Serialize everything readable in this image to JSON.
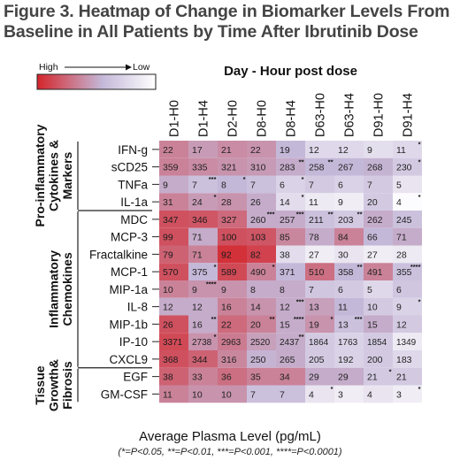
{
  "title_line1": "Figure 3. Heatmap of Change in Biomarker Levels From",
  "title_line2": "Baseline in All Patients by Time After Ibrutinib Dose",
  "footer_main": "Average Plasma Level (pg/mL)",
  "footer_sig": "(*=P<0.05, **=P<0.01, ***=P<0.001, ****=P<0.0001)",
  "colors": {
    "high": "#d4252b",
    "mid": "#c4b8d8",
    "low": "#ffffff",
    "border": "#333333"
  },
  "chart_data": {
    "type": "heatmap",
    "title": "Day - Hour post dose",
    "legend": {
      "high_label": "High",
      "low_label": "Low",
      "placement": "top-left"
    },
    "columns": [
      "D1-H0",
      "D1-H4",
      "D2-H0",
      "D8-H0",
      "D8-H4",
      "D63-H0",
      "D63-H4",
      "D91-H0",
      "D91-H4"
    ],
    "groups": [
      {
        "label_lines": [
          "Pro-inflammatory",
          "Cytokines &",
          "Markers"
        ],
        "start": 0,
        "end": 3
      },
      {
        "label_lines": [
          "Inflammatory",
          "Chemokines"
        ],
        "start": 4,
        "end": 12
      },
      {
        "label_lines": [
          "Tissue",
          "Growth&",
          "Fibrosis"
        ],
        "start": 13,
        "end": 14
      }
    ],
    "rows": [
      {
        "label": "IFN-g",
        "values": [
          "22",
          "17",
          "21",
          "22",
          "19",
          "12",
          "12",
          "9",
          "11"
        ],
        "sig": [
          "",
          "",
          "",
          "",
          "",
          "",
          "",
          "",
          "*"
        ]
      },
      {
        "label": "sCD25",
        "values": [
          "359",
          "335",
          "321",
          "310",
          "283",
          "258",
          "267",
          "268",
          "230"
        ],
        "sig": [
          "",
          "",
          "",
          "",
          "**",
          "**",
          "",
          "",
          "*"
        ]
      },
      {
        "label": "TNFa",
        "values": [
          "9",
          "7",
          "8",
          "7",
          "6",
          "7",
          "6",
          "7",
          "5"
        ],
        "sig": [
          "",
          "***",
          "*",
          "",
          "*",
          "",
          "",
          "",
          ""
        ]
      },
      {
        "label": "IL-1a",
        "values": [
          "31",
          "24",
          "28",
          "26",
          "14",
          "11",
          "9",
          "20",
          "4"
        ],
        "sig": [
          "",
          "*",
          "",
          "",
          "*",
          "",
          "",
          "",
          "*"
        ]
      },
      {
        "label": "MDC",
        "values": [
          "347",
          "346",
          "327",
          "260",
          "257",
          "211",
          "203",
          "262",
          "245"
        ],
        "sig": [
          "",
          "",
          "",
          "***",
          "***",
          "**",
          "**",
          "",
          ""
        ]
      },
      {
        "label": "MCP-3",
        "values": [
          "99",
          "71",
          "100",
          "103",
          "85",
          "78",
          "84",
          "66",
          "71"
        ],
        "sig": [
          "",
          "",
          "",
          "",
          "",
          "",
          "",
          "",
          ""
        ]
      },
      {
        "label": "Fractalkine",
        "values": [
          "79",
          "71",
          "92",
          "82",
          "38",
          "27",
          "30",
          "27",
          "28"
        ],
        "sig": [
          "",
          "",
          "",
          "",
          "",
          "",
          "",
          "",
          ""
        ]
      },
      {
        "label": "MCP-1",
        "values": [
          "570",
          "375",
          "589",
          "490",
          "371",
          "510",
          "358",
          "491",
          "355"
        ],
        "sig": [
          "",
          "*",
          "",
          "*",
          "",
          "",
          "**",
          "",
          "****"
        ]
      },
      {
        "label": "MIP-1a",
        "values": [
          "10",
          "9",
          "9",
          "8",
          "8",
          "7",
          "6",
          "5",
          "6"
        ],
        "sig": [
          "",
          "****",
          "",
          "",
          "",
          "",
          "",
          "",
          ""
        ]
      },
      {
        "label": "IL-8",
        "values": [
          "12",
          "12",
          "16",
          "14",
          "12",
          "13",
          "11",
          "10",
          "9"
        ],
        "sig": [
          "",
          "",
          "",
          "",
          "***",
          "",
          "",
          "",
          "*"
        ]
      },
      {
        "label": "MIP-1b",
        "values": [
          "26",
          "16",
          "22",
          "20",
          "15",
          "19",
          "13",
          "15",
          "12"
        ],
        "sig": [
          "",
          "**",
          "",
          "**",
          "****",
          "*",
          "***",
          "",
          ""
        ]
      },
      {
        "label": "IP-10",
        "values": [
          "3371",
          "2738",
          "2963",
          "2520",
          "2437",
          "1864",
          "1763",
          "1854",
          "1349"
        ],
        "sig": [
          "",
          "*",
          "",
          "",
          "**",
          "",
          "",
          "",
          ""
        ]
      },
      {
        "label": "CXCL9",
        "values": [
          "368",
          "344",
          "316",
          "250",
          "265",
          "205",
          "192",
          "200",
          "183"
        ],
        "sig": [
          "",
          "",
          "",
          "",
          "",
          "",
          "",
          "",
          ""
        ]
      },
      {
        "label": "EGF",
        "values": [
          "38",
          "33",
          "36",
          "35",
          "34",
          "29",
          "29",
          "21",
          "21"
        ],
        "sig": [
          "",
          "",
          "",
          "",
          "",
          "",
          "",
          "*",
          ""
        ]
      },
      {
        "label": "GM-CSF",
        "values": [
          "11",
          "10",
          "10",
          "7",
          "7",
          "4",
          "3",
          "4",
          "3"
        ],
        "sig": [
          "",
          "",
          "",
          "",
          "",
          "*",
          "",
          "",
          "*"
        ]
      }
    ],
    "intensity": [
      [
        0.62,
        0.52,
        0.58,
        0.55,
        0.4,
        0.22,
        0.22,
        0.18,
        0.22
      ],
      [
        0.62,
        0.58,
        0.55,
        0.52,
        0.45,
        0.4,
        0.4,
        0.42,
        0.3
      ],
      [
        0.45,
        0.35,
        0.4,
        0.35,
        0.25,
        0.3,
        0.25,
        0.3,
        0.15
      ],
      [
        0.62,
        0.52,
        0.55,
        0.45,
        0.2,
        0.12,
        0.1,
        0.3,
        0.02
      ],
      [
        0.82,
        0.8,
        0.72,
        0.45,
        0.45,
        0.35,
        0.3,
        0.45,
        0.35
      ],
      [
        0.82,
        0.45,
        0.82,
        0.8,
        0.6,
        0.45,
        0.62,
        0.4,
        0.45
      ],
      [
        0.75,
        0.62,
        0.95,
        0.88,
        0.2,
        0.1,
        0.15,
        0.1,
        0.12
      ],
      [
        0.82,
        0.4,
        0.85,
        0.62,
        0.4,
        0.7,
        0.4,
        0.62,
        0.35
      ],
      [
        0.62,
        0.55,
        0.55,
        0.45,
        0.45,
        0.32,
        0.3,
        0.22,
        0.32
      ],
      [
        0.45,
        0.45,
        0.62,
        0.55,
        0.45,
        0.5,
        0.4,
        0.3,
        0.25
      ],
      [
        0.82,
        0.45,
        0.72,
        0.62,
        0.45,
        0.55,
        0.35,
        0.45,
        0.3
      ],
      [
        0.85,
        0.55,
        0.65,
        0.5,
        0.45,
        0.3,
        0.25,
        0.3,
        0.12
      ],
      [
        0.82,
        0.75,
        0.6,
        0.42,
        0.45,
        0.3,
        0.25,
        0.3,
        0.22
      ],
      [
        0.75,
        0.62,
        0.7,
        0.62,
        0.62,
        0.45,
        0.45,
        0.3,
        0.3
      ],
      [
        0.62,
        0.55,
        0.55,
        0.35,
        0.35,
        0.15,
        0.1,
        0.15,
        0.1
      ]
    ]
  }
}
